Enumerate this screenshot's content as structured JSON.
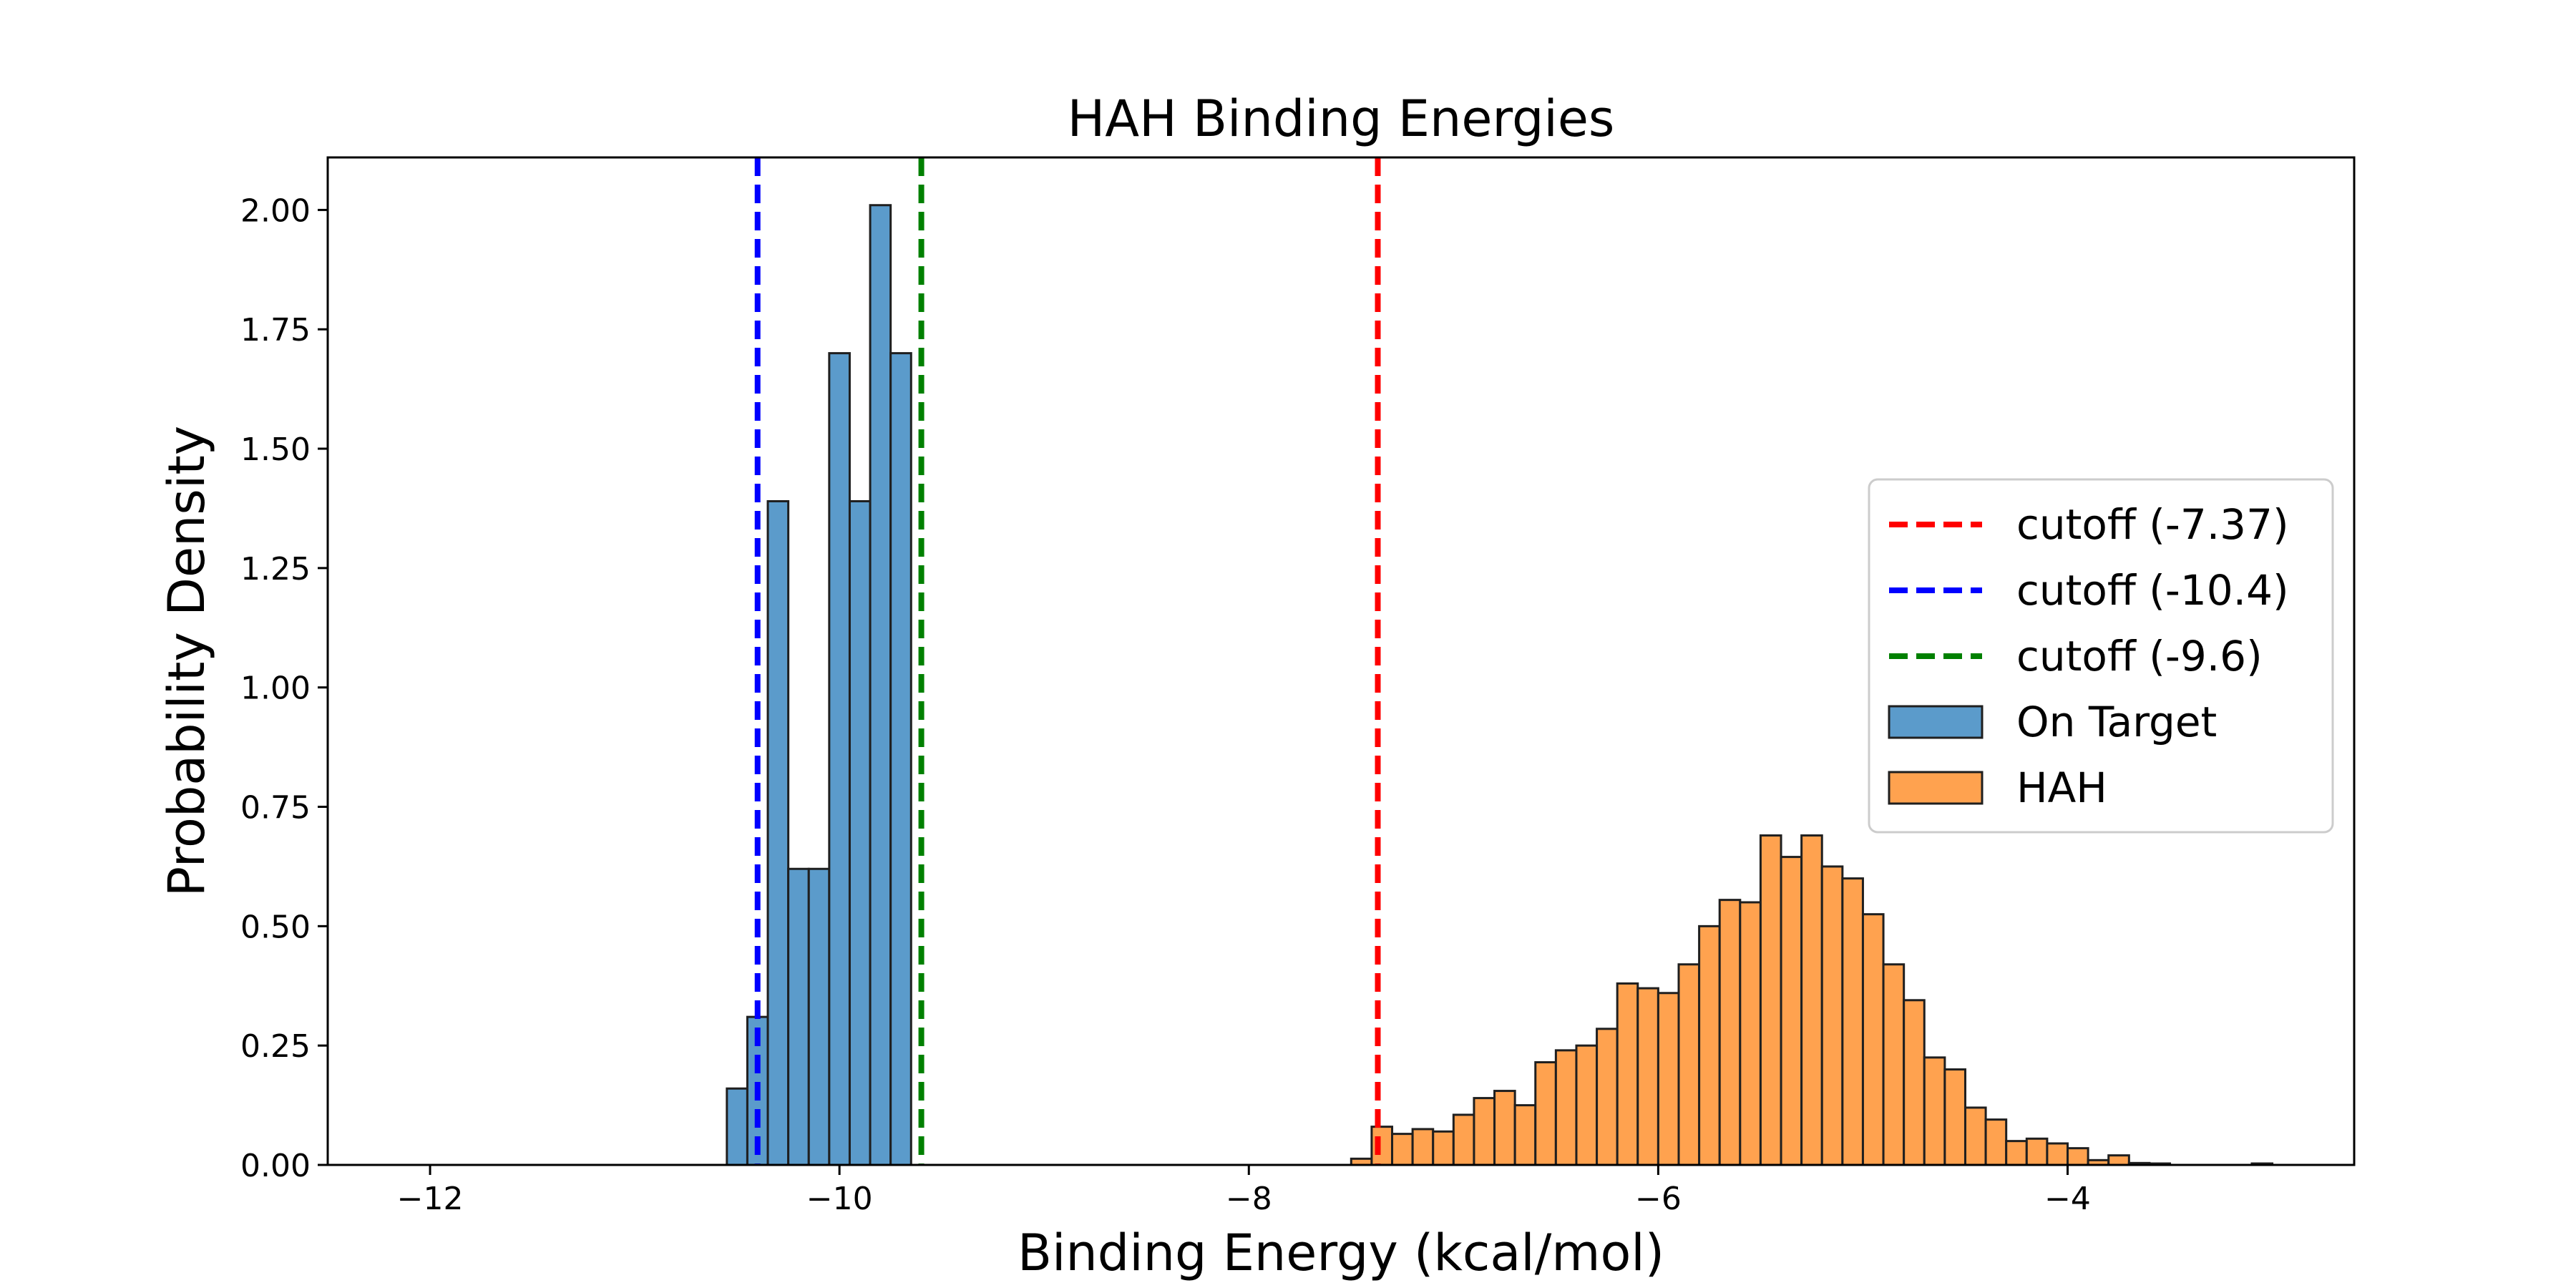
{
  "chart_data": {
    "type": "bar",
    "title": "HAH Binding Energies",
    "xlabel": "Binding Energy (kcal/mol)",
    "ylabel": "Probability Density",
    "xlim": [
      -12.5,
      -2.6
    ],
    "ylim": [
      0,
      2.11
    ],
    "xticks": [
      {
        "value": -12,
        "label": "−12"
      },
      {
        "value": -10,
        "label": "−10"
      },
      {
        "value": -8,
        "label": "−8"
      },
      {
        "value": -6,
        "label": "−6"
      },
      {
        "value": -4,
        "label": "−4"
      }
    ],
    "yticks": [
      {
        "value": 0.0,
        "label": "0.00"
      },
      {
        "value": 0.25,
        "label": "0.25"
      },
      {
        "value": 0.5,
        "label": "0.50"
      },
      {
        "value": 0.75,
        "label": "0.75"
      },
      {
        "value": 1.0,
        "label": "1.00"
      },
      {
        "value": 1.25,
        "label": "1.25"
      },
      {
        "value": 1.5,
        "label": "1.50"
      },
      {
        "value": 1.75,
        "label": "1.75"
      },
      {
        "value": 2.0,
        "label": "2.00"
      }
    ],
    "grid": false,
    "legend_position": "center-right",
    "series": [
      {
        "name": "On Target",
        "kind": "histogram",
        "color": "#5b9bcb",
        "edge_color": "#1f1f1f",
        "bin_start": -10.55,
        "bin_width": 0.1,
        "values": [
          0.16,
          0.31,
          1.39,
          0.62,
          0.62,
          1.7,
          1.39,
          2.01,
          1.7
        ]
      },
      {
        "name": "HAH",
        "kind": "histogram",
        "color": "#ffa24f",
        "edge_color": "#1f1f1f",
        "bin_start": -7.5,
        "bin_width": 0.1,
        "values": [
          0.013,
          0.08,
          0.065,
          0.075,
          0.07,
          0.105,
          0.14,
          0.155,
          0.125,
          0.215,
          0.24,
          0.25,
          0.285,
          0.38,
          0.37,
          0.36,
          0.42,
          0.5,
          0.555,
          0.55,
          0.69,
          0.645,
          0.69,
          0.625,
          0.6,
          0.525,
          0.42,
          0.345,
          0.225,
          0.2,
          0.12,
          0.095,
          0.05,
          0.055,
          0.045,
          0.035,
          0.01,
          0.02,
          0.004,
          0.003,
          0.0,
          0.0,
          0.0,
          0.0,
          0.003,
          0.0,
          0.0,
          0.0
        ]
      }
    ],
    "vlines": [
      {
        "name": "cutoff (-7.37)",
        "x": -7.37,
        "color": "#ff0000"
      },
      {
        "name": "cutoff (-10.4)",
        "x": -10.4,
        "color": "#0000ff"
      },
      {
        "name": "cutoff (-9.6)",
        "x": -9.6,
        "color": "#008000"
      }
    ],
    "legend_order": [
      "cutoff (-7.37)",
      "cutoff (-10.4)",
      "cutoff (-9.6)",
      "On Target",
      "HAH"
    ]
  }
}
